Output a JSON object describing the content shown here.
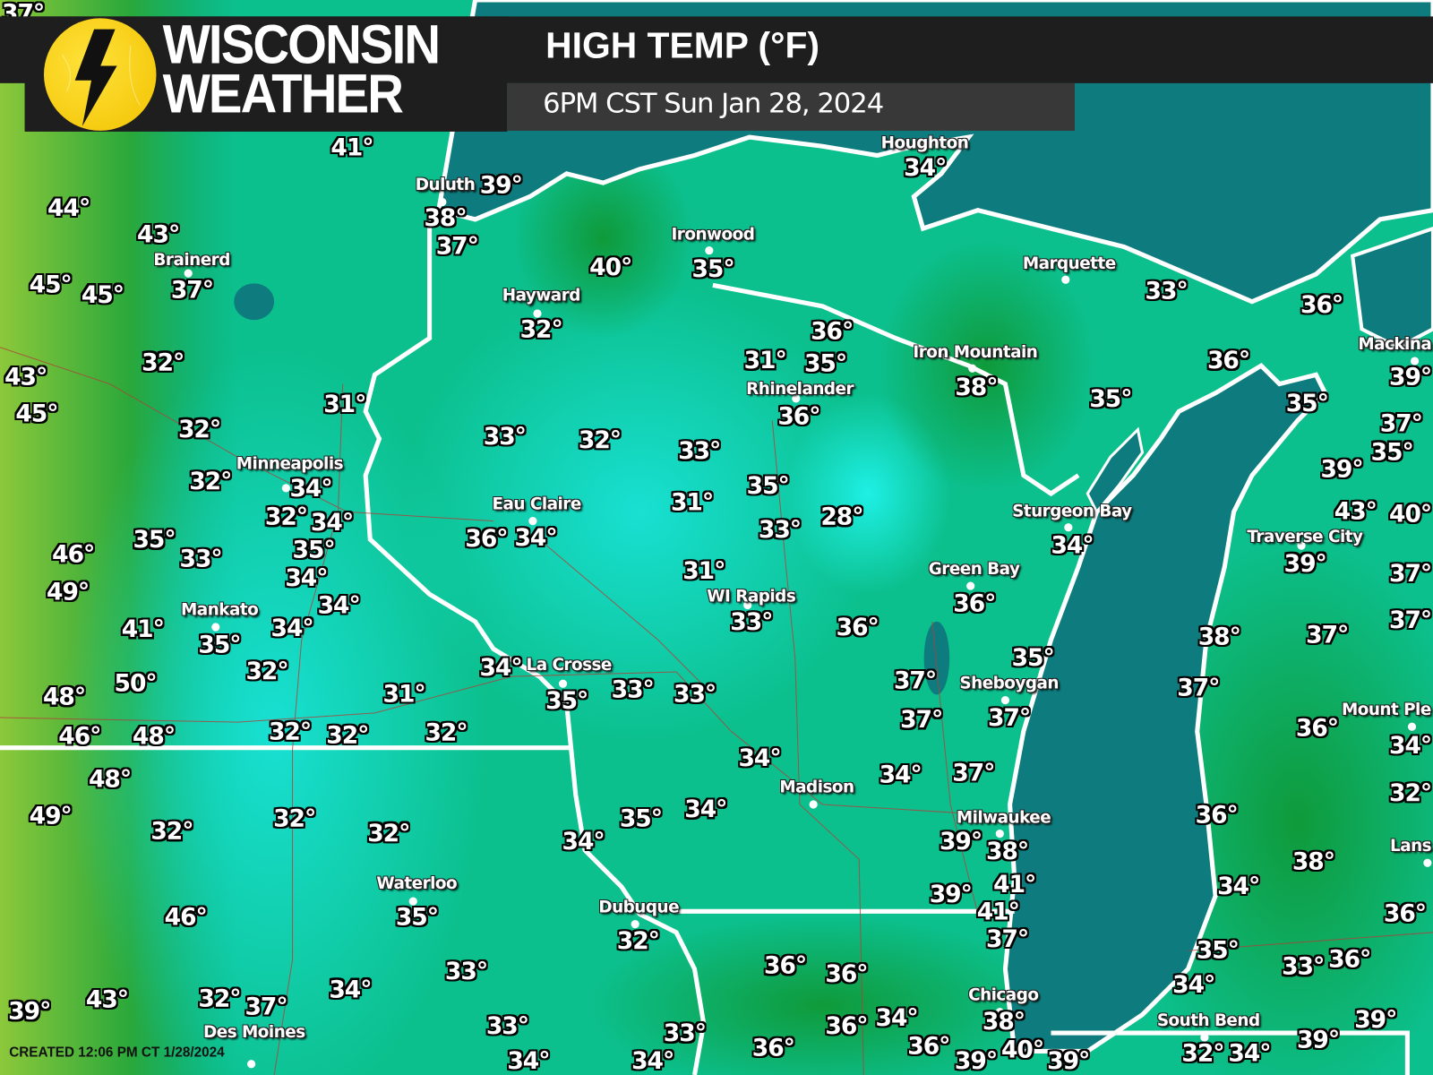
{
  "header": {
    "logo_line1": "WISCONSIN",
    "logo_line2": "WEATHER",
    "title": "HIGH TEMP (°F)",
    "valid_time": "6PM CST Sun Jan 28, 2024"
  },
  "footer": {
    "created": "CREATED 12:06 PM CT 1/28/2024"
  },
  "colors": {
    "lake": "#0e7c7e",
    "cold_cyan": "#19e6dc",
    "mid_teal": "#0cc79a",
    "warm_green": "#139a3c",
    "hot_lime": "#8cc83a",
    "boundary": "#ffffff",
    "county_lines": "#b0403a"
  },
  "cities": [
    "Houghton",
    "Duluth",
    "Brainerd",
    "Ironwood",
    "Hayward",
    "Marquette",
    "Iron Mountain",
    "Rhinelander",
    "Mackina",
    "Minneapolis",
    "Eau Claire",
    "Sturgeon Bay",
    "Traverse City",
    "Green Bay",
    "WI Rapids",
    "Mankato",
    "La Crosse",
    "Sheboygan",
    "Mount Ple",
    "Madison",
    "Milwaukee",
    "Lans",
    "Waterloo",
    "Dubuque",
    "Chicago",
    "South Bend",
    "Des Moines"
  ],
  "temperatures": [
    "37°",
    "41°",
    "44°",
    "43°",
    "45°",
    "45°",
    "37°",
    "32°",
    "43°",
    "45°",
    "31°",
    "32°",
    "32°",
    "34°",
    "32°",
    "34°",
    "35°",
    "35°",
    "33°",
    "46°",
    "49°",
    "34°",
    "34°",
    "34°",
    "41°",
    "35°",
    "32°",
    "48°",
    "50°",
    "31°",
    "46°",
    "48°",
    "32°",
    "32°",
    "32°",
    "48°",
    "49°",
    "32°",
    "32°",
    "32°",
    "46°",
    "35°",
    "33°",
    "34°",
    "39°",
    "43°",
    "32°",
    "37°",
    "33°",
    "39°",
    "38°",
    "37°",
    "40°",
    "35°",
    "32°",
    "36°",
    "31°",
    "35°",
    "36°",
    "33°",
    "32°",
    "33°",
    "35°",
    "31°",
    "28°",
    "33°",
    "36°",
    "34°",
    "31°",
    "33°",
    "36°",
    "34°",
    "35°",
    "33°",
    "33°",
    "34°",
    "35°",
    "34°",
    "34°",
    "32°",
    "36°",
    "36°",
    "33°",
    "36°",
    "36°",
    "34°",
    "36°",
    "34°",
    "34°",
    "34°",
    "38°",
    "35°",
    "33°",
    "36°",
    "36°",
    "35°",
    "34°",
    "36°",
    "35°",
    "37°",
    "37°",
    "37°",
    "34°",
    "37°",
    "39°",
    "38°",
    "41°",
    "39°",
    "41°",
    "37°",
    "38°",
    "40°",
    "39°",
    "39°",
    "39°",
    "38°",
    "37°",
    "37°",
    "36°",
    "34°",
    "32°",
    "36°",
    "38°",
    "34°",
    "36°",
    "35°",
    "33°",
    "36°",
    "34°",
    "32°",
    "34°",
    "39°",
    "39°",
    "35°",
    "39°",
    "37°",
    "39°",
    "40°",
    "37°",
    "37°",
    "43°"
  ]
}
